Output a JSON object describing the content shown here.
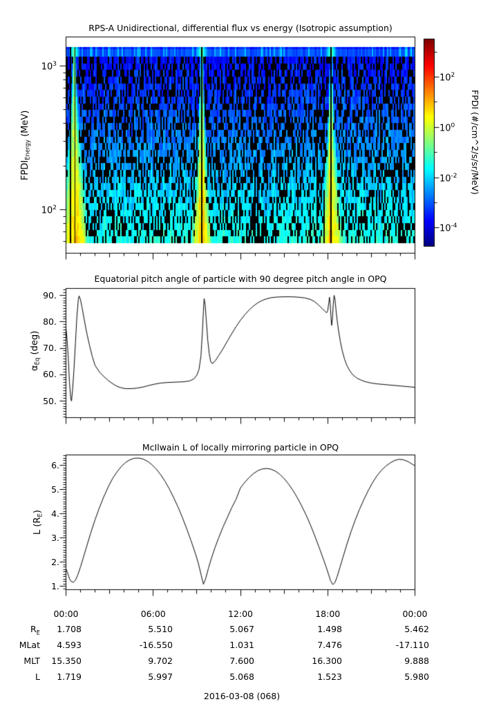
{
  "chart_data": [
    {
      "id": "flux_spectrogram",
      "type": "heatmap",
      "title": "RPS-A Unidirectional, differential flux vs energy (Isotropic assumption)",
      "ylabel": "FPDI~Energy~ (MeV)",
      "y_scale": "log",
      "ylim_mev": [
        50,
        1600
      ],
      "yticks": [
        {
          "value": 1000,
          "label": "10^3^"
        },
        {
          "value": 100,
          "label": "10^2^"
        }
      ],
      "yticks_minor": [
        60,
        70,
        80,
        90,
        200,
        300,
        400,
        500,
        600,
        700,
        800,
        900
      ],
      "xlim_hours": [
        0,
        24
      ],
      "colormap": "jet",
      "colorbar": {
        "label": "FPDI (#/cm^2/s/sr/MeV)",
        "log10_range": [
          -4.75,
          3.5
        ],
        "ticks": [
          {
            "log10": 2,
            "label": "10^2^"
          },
          {
            "log10": 0,
            "label": "10^0^"
          },
          {
            "log10": -2,
            "label": "10^-2^"
          },
          {
            "log10": -4,
            "label": "10^-4^"
          }
        ],
        "minor_ticks_log10": [
          3,
          1,
          -1,
          -3
        ]
      },
      "structure": {
        "description": "noisy blue-to-cyan spectrogram with black dropouts, solid blue high-energy band on top, yellow-green flux flames widening toward low energy at each perigee pass",
        "energy_bins": 28,
        "perigee_flame_hours": [
          0.55,
          9.33,
          18.25
        ],
        "flame_width_factors": [
          1.35,
          0.95,
          1.0
        ],
        "data_gap_hours": [
          0.27,
          0.58,
          9.27,
          18.18
        ],
        "background_jet_value": [
          0.13,
          0.4
        ],
        "flame_core_jet_value": [
          0.52,
          0.68
        ],
        "dropout_fraction_range": [
          0.3,
          0.52
        ],
        "seed": 1337
      }
    },
    {
      "id": "equatorial_pitch_angle",
      "type": "line",
      "title": "Equatorial pitch angle of particle with 90 degree pitch angle in OPQ",
      "ylabel": "α~Eq~ (deg)",
      "ylim": [
        43.7,
        92.6
      ],
      "yticks": [
        {
          "value": 90,
          "label": "90."
        },
        {
          "value": 80,
          "label": "80."
        },
        {
          "value": 70,
          "label": "70."
        },
        {
          "value": 60,
          "label": "60."
        },
        {
          "value": 50,
          "label": "50."
        }
      ],
      "minor_tick_step": 1,
      "xlim_hours": [
        0,
        24
      ],
      "points": [
        [
          0,
          77.7
        ],
        [
          0.08,
          73
        ],
        [
          0.16,
          66
        ],
        [
          0.24,
          57
        ],
        [
          0.33,
          51
        ],
        [
          0.38,
          50
        ],
        [
          0.45,
          54
        ],
        [
          0.55,
          62
        ],
        [
          0.65,
          72
        ],
        [
          0.75,
          82
        ],
        [
          0.85,
          88.5
        ],
        [
          0.9,
          89.8
        ],
        [
          1.0,
          88.3
        ],
        [
          1.1,
          85.5
        ],
        [
          1.25,
          81
        ],
        [
          1.4,
          76.5
        ],
        [
          1.6,
          71.5
        ],
        [
          1.8,
          67
        ],
        [
          2.0,
          63.5
        ],
        [
          2.3,
          61
        ],
        [
          2.6,
          59.3
        ],
        [
          2.9,
          57.8
        ],
        [
          3.2,
          56.6
        ],
        [
          3.5,
          55.6
        ],
        [
          3.8,
          55.0
        ],
        [
          4.1,
          54.7
        ],
        [
          4.5,
          54.7
        ],
        [
          4.9,
          54.9
        ],
        [
          5.3,
          55.3
        ],
        [
          5.7,
          55.9
        ],
        [
          6.1,
          56.4
        ],
        [
          6.5,
          56.8
        ],
        [
          6.9,
          57.0
        ],
        [
          7.3,
          57.1
        ],
        [
          7.7,
          57.2
        ],
        [
          8.1,
          57.3
        ],
        [
          8.5,
          57.6
        ],
        [
          8.8,
          58.4
        ],
        [
          9.0,
          59.8
        ],
        [
          9.15,
          62
        ],
        [
          9.28,
          67
        ],
        [
          9.38,
          76
        ],
        [
          9.45,
          84
        ],
        [
          9.5,
          88.8
        ],
        [
          9.57,
          86.5
        ],
        [
          9.65,
          80.5
        ],
        [
          9.75,
          73
        ],
        [
          9.85,
          68
        ],
        [
          9.95,
          65
        ],
        [
          10.05,
          64.2
        ],
        [
          10.15,
          64.5
        ],
        [
          10.3,
          65.5
        ],
        [
          10.5,
          67.2
        ],
        [
          10.8,
          69.8
        ],
        [
          11.1,
          72.7
        ],
        [
          11.4,
          75.5
        ],
        [
          11.7,
          78.2
        ],
        [
          12.0,
          80.6
        ],
        [
          12.3,
          82.7
        ],
        [
          12.6,
          84.5
        ],
        [
          12.9,
          86
        ],
        [
          13.2,
          87.2
        ],
        [
          13.5,
          88.1
        ],
        [
          13.8,
          88.7
        ],
        [
          14.1,
          89.1
        ],
        [
          14.5,
          89.35
        ],
        [
          15.0,
          89.45
        ],
        [
          15.5,
          89.45
        ],
        [
          16.0,
          89.3
        ],
        [
          16.4,
          89.05
        ],
        [
          16.8,
          88.5
        ],
        [
          17.1,
          87.6
        ],
        [
          17.4,
          86.2
        ],
        [
          17.6,
          85.1
        ],
        [
          17.8,
          84
        ],
        [
          17.93,
          83.4
        ],
        [
          18.0,
          84.2
        ],
        [
          18.07,
          87
        ],
        [
          18.12,
          89.3
        ],
        [
          18.17,
          87
        ],
        [
          18.22,
          82
        ],
        [
          18.27,
          78.6
        ],
        [
          18.32,
          81
        ],
        [
          18.38,
          86.5
        ],
        [
          18.44,
          90
        ],
        [
          18.5,
          88.5
        ],
        [
          18.57,
          84.5
        ],
        [
          18.65,
          80.5
        ],
        [
          18.75,
          76.5
        ],
        [
          18.87,
          72.5
        ],
        [
          19.0,
          69
        ],
        [
          19.15,
          66
        ],
        [
          19.3,
          63.7
        ],
        [
          19.5,
          61.6
        ],
        [
          19.7,
          60.1
        ],
        [
          20.0,
          58.7
        ],
        [
          20.3,
          57.9
        ],
        [
          20.6,
          57.3
        ],
        [
          21.0,
          56.8
        ],
        [
          21.4,
          56.5
        ],
        [
          21.8,
          56.3
        ],
        [
          22.2,
          56.1
        ],
        [
          22.6,
          55.9
        ],
        [
          23.0,
          55.7
        ],
        [
          23.4,
          55.5
        ],
        [
          23.7,
          55.35
        ],
        [
          24,
          55.2
        ]
      ]
    },
    {
      "id": "mcilwain_l",
      "type": "line",
      "title": "McIlwain L of locally mirroring particle in OPQ",
      "ylabel": "L (R~E~)",
      "ylim": [
        0.86,
        6.43
      ],
      "yticks": [
        {
          "value": 6,
          "label": "6."
        },
        {
          "value": 5,
          "label": "5."
        },
        {
          "value": 4,
          "label": "4."
        },
        {
          "value": 3,
          "label": "3."
        },
        {
          "value": 2,
          "label": "2."
        },
        {
          "value": 1,
          "label": "1."
        }
      ],
      "minor_tick_step": 0.1,
      "xlim_hours": [
        0,
        24
      ],
      "points": [
        [
          0,
          1.72
        ],
        [
          0.08,
          1.6
        ],
        [
          0.16,
          1.45
        ],
        [
          0.25,
          1.3
        ],
        [
          0.35,
          1.2
        ],
        [
          0.5,
          1.16
        ],
        [
          0.65,
          1.25
        ],
        [
          0.8,
          1.45
        ],
        [
          1.0,
          1.8
        ],
        [
          1.2,
          2.2
        ],
        [
          1.45,
          2.7
        ],
        [
          1.7,
          3.2
        ],
        [
          2.0,
          3.75
        ],
        [
          2.3,
          4.25
        ],
        [
          2.6,
          4.7
        ],
        [
          2.9,
          5.1
        ],
        [
          3.2,
          5.45
        ],
        [
          3.5,
          5.72
        ],
        [
          3.8,
          5.95
        ],
        [
          4.1,
          6.12
        ],
        [
          4.4,
          6.23
        ],
        [
          4.7,
          6.29
        ],
        [
          5.0,
          6.3
        ],
        [
          5.3,
          6.26
        ],
        [
          5.6,
          6.17
        ],
        [
          5.9,
          6.03
        ],
        [
          6.2,
          5.85
        ],
        [
          6.5,
          5.62
        ],
        [
          6.8,
          5.35
        ],
        [
          7.1,
          5.03
        ],
        [
          7.4,
          4.67
        ],
        [
          7.7,
          4.28
        ],
        [
          8.0,
          3.85
        ],
        [
          8.3,
          3.38
        ],
        [
          8.6,
          2.88
        ],
        [
          8.9,
          2.35
        ],
        [
          9.1,
          1.95
        ],
        [
          9.3,
          1.45
        ],
        [
          9.45,
          1.08
        ],
        [
          9.6,
          1.3
        ],
        [
          9.8,
          1.75
        ],
        [
          10.0,
          2.15
        ],
        [
          10.25,
          2.6
        ],
        [
          10.5,
          3.0
        ],
        [
          10.8,
          3.45
        ],
        [
          11.1,
          3.85
        ],
        [
          11.4,
          4.25
        ],
        [
          11.7,
          4.6
        ],
        [
          12.0,
          5.07
        ],
        [
          12.3,
          5.3
        ],
        [
          12.6,
          5.5
        ],
        [
          12.9,
          5.66
        ],
        [
          13.2,
          5.78
        ],
        [
          13.5,
          5.85
        ],
        [
          13.8,
          5.87
        ],
        [
          14.1,
          5.84
        ],
        [
          14.4,
          5.76
        ],
        [
          14.7,
          5.63
        ],
        [
          15.0,
          5.45
        ],
        [
          15.3,
          5.23
        ],
        [
          15.6,
          4.97
        ],
        [
          15.9,
          4.67
        ],
        [
          16.2,
          4.33
        ],
        [
          16.5,
          3.96
        ],
        [
          16.8,
          3.55
        ],
        [
          17.1,
          3.1
        ],
        [
          17.4,
          2.62
        ],
        [
          17.7,
          2.12
        ],
        [
          17.9,
          1.78
        ],
        [
          18.05,
          1.5
        ],
        [
          18.2,
          1.22
        ],
        [
          18.35,
          1.07
        ],
        [
          18.5,
          1.15
        ],
        [
          18.65,
          1.4
        ],
        [
          18.85,
          1.8
        ],
        [
          19.05,
          2.2
        ],
        [
          19.3,
          2.7
        ],
        [
          19.6,
          3.25
        ],
        [
          19.9,
          3.75
        ],
        [
          20.2,
          4.2
        ],
        [
          20.5,
          4.6
        ],
        [
          20.8,
          4.97
        ],
        [
          21.1,
          5.3
        ],
        [
          21.4,
          5.58
        ],
        [
          21.7,
          5.8
        ],
        [
          22.0,
          5.97
        ],
        [
          22.3,
          6.1
        ],
        [
          22.6,
          6.2
        ],
        [
          22.9,
          6.25
        ],
        [
          23.2,
          6.23
        ],
        [
          23.5,
          6.16
        ],
        [
          23.75,
          6.07
        ],
        [
          24,
          5.98
        ]
      ]
    }
  ],
  "time_axis": {
    "tick_hours": [
      0,
      6,
      12,
      18,
      24
    ],
    "tick_labels": [
      "00:00",
      "06:00",
      "12:00",
      "18:00",
      "00:00"
    ],
    "minor_step_hours": 1,
    "medium_step_hours": 3
  },
  "ephemeris_table": {
    "rows": [
      {
        "label": "R~E~",
        "values": [
          "1.708",
          "5.510",
          "5.067",
          "1.498",
          "5.462"
        ]
      },
      {
        "label": "MLat",
        "values": [
          "4.593",
          "-16.550",
          "1.031",
          "7.476",
          "-17.110"
        ]
      },
      {
        "label": "MLT",
        "values": [
          "15.350",
          "9.702",
          "7.600",
          "16.300",
          "9.888"
        ]
      },
      {
        "label": "L",
        "values": [
          "1.719",
          "5.997",
          "5.068",
          "1.523",
          "5.980"
        ]
      }
    ]
  },
  "footer": {
    "date_label": "2016-03-08 (068)"
  },
  "colors": {
    "line": "#000000",
    "text": "#000000",
    "background": "#ffffff"
  }
}
